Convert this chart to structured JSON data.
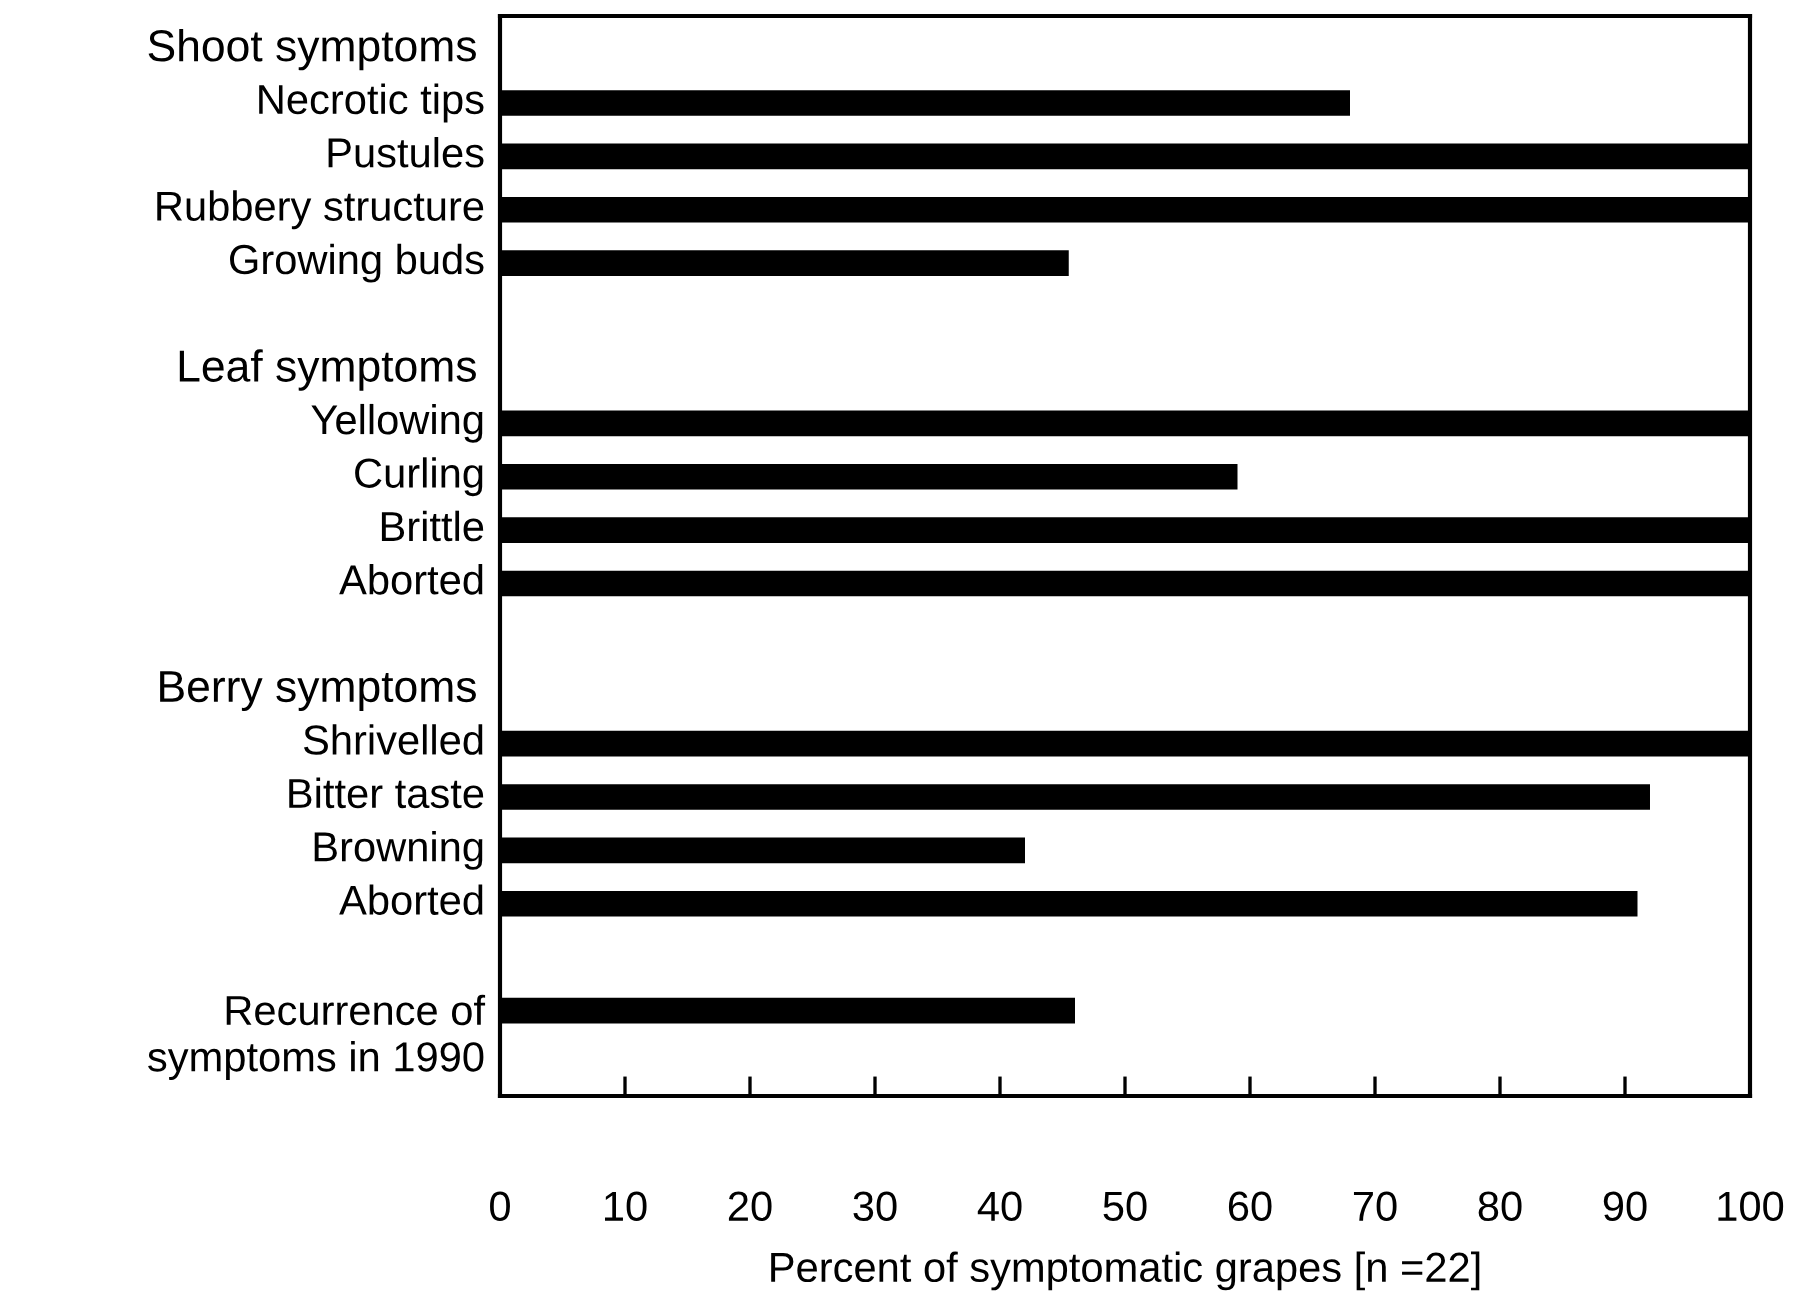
{
  "chart_data": {
    "type": "bar",
    "orientation": "horizontal",
    "color": "#000000",
    "categories": [
      "Shoot symptoms",
      "Necrotic tips",
      "Pustules",
      "Rubbery structure",
      "Growing buds",
      null,
      "Leaf symptoms",
      "Yellowing",
      "Curling",
      "Brittle",
      "Aborted",
      null,
      "Berry symptoms",
      "Shrivelled",
      "Bitter taste",
      "Browning",
      "Aborted",
      null,
      "Recurrence of\nsymptoms in 1990"
    ],
    "values": [
      null,
      68,
      100,
      100,
      45.5,
      null,
      null,
      100,
      59,
      100,
      100,
      null,
      null,
      100,
      92,
      42,
      91,
      null,
      46
    ],
    "xlabel": "Percent of symptomatic grapes [n =22]",
    "xlim": [
      0,
      100
    ],
    "xticks": [
      0,
      10,
      20,
      30,
      40,
      50,
      60,
      70,
      80,
      90,
      100
    ],
    "grid": false,
    "legend": false
  }
}
